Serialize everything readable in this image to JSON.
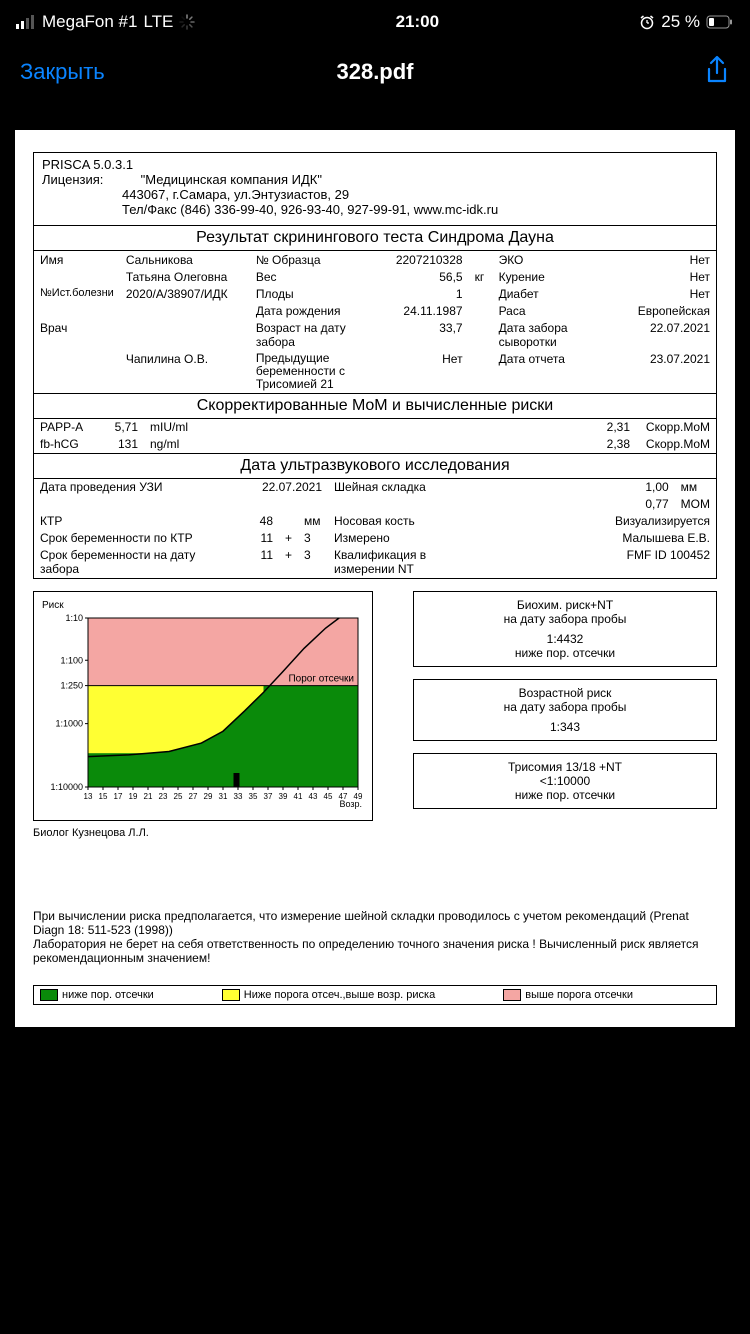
{
  "status": {
    "carrier": "MegaFon #1",
    "network": "LTE",
    "time": "21:00",
    "battery_pct": "25 %"
  },
  "nav": {
    "close": "Закрыть",
    "title": "328.pdf"
  },
  "doc": {
    "app": "PRISCA  5.0.3.1",
    "lic_label": "Лицензия:",
    "lic_name": "\"Медицинская компания ИДК\"",
    "lic_addr": "443067, г.Самара, ул.Энтузиастов, 29",
    "lic_tel": "Тел/Факс (846) 336-99-40, 926-93-40, 927-99-91, www.mc-idk.ru",
    "title1": "Результат скринингового теста Синдрома Дауна",
    "p": {
      "name_l": "Имя",
      "name1": "Сальникова",
      "name2": "Татьяна Олеговна",
      "hist_l": "№Ист.болезни",
      "hist": "2020/A/38907/ИДК",
      "doc_l": "Врач",
      "doc": "Чапилина О.В.",
      "sample_l": "№ Образца",
      "sample": "2207210328",
      "weight_l": "Вес",
      "weight": "56,5",
      "weight_u": "кг",
      "fetus_l": "Плоды",
      "fetus": "1",
      "dob_l": "Дата рождения",
      "dob": "24.11.1987",
      "age_l": "Возраст на дату забора",
      "age": "33,7",
      "prev_l": "Предыдущие беременности с Трисомией 21",
      "prev": "Нет",
      "eco_l": "ЭКО",
      "eco": "Нет",
      "smoke_l": "Курение",
      "smoke": "Нет",
      "diab_l": "Диабет",
      "diab": "Нет",
      "race_l": "Раса",
      "race": "Европейская",
      "sdate_l": "Дата забора сыворотки",
      "sdate": "22.07.2021",
      "rdate_l": "Дата отчета",
      "rdate": "23.07.2021"
    },
    "title2": "Скорректированные MoM и вычисленные риски",
    "mom": {
      "m1": "PAPP-A",
      "v1": "5,71",
      "u1": "mIU/ml",
      "c1": "2,31",
      "l1": "Скорр.MoM",
      "m2": "fb-hCG",
      "v2": "131",
      "u2": "ng/ml",
      "c2": "2,38",
      "l2": "Скорр.MoM"
    },
    "title3": "Дата ультразвукового исследования",
    "us": {
      "d_l": "Дата проведения УЗИ",
      "d": "22.07.2021",
      "nt_l": "Шейная складка",
      "nt": "1,00",
      "nt_u": "мм",
      "nt_mom": "0,77",
      "nt_moml": "MOM",
      "crl_l": "КТР",
      "crl": "48",
      "crl_u": "мм",
      "nb_l": "Носовая кость",
      "nb": "Визуализируется",
      "ga1_l": "Срок беременности по КТР",
      "ga1a": "11",
      "ga1p": "+",
      "ga1b": "3",
      "meas_l": "Измерено",
      "meas": "Малышева Е.В.",
      "ga2_l": "Срок беременности на дату забора",
      "ga2a": "11",
      "ga2p": "+",
      "ga2b": "3",
      "qual_l": "Квалификация в измерении NT",
      "qual": "FMF  ID 100452"
    },
    "chart": {
      "ylabel": "Риск",
      "xlabel": "Возр.",
      "cutoff_label": "Порог отсечки",
      "y_ticks": [
        "1:10",
        "1:100",
        "1:250",
        "1:1000",
        "1:10000"
      ],
      "x_ticks": [
        "13",
        "15",
        "17",
        "19",
        "21",
        "23",
        "25",
        "27",
        "29",
        "31",
        "33",
        "35",
        "37",
        "39",
        "41",
        "43",
        "45",
        "47",
        "49"
      ],
      "colors": {
        "high": "#f4a6a3",
        "mid": "#ffff33",
        "low": "#0a8a0a",
        "frame": "#000000",
        "bg": "#ffffff"
      },
      "cutoff_y": 0.4,
      "curve": [
        [
          0,
          0.82
        ],
        [
          0.15,
          0.81
        ],
        [
          0.3,
          0.79
        ],
        [
          0.42,
          0.74
        ],
        [
          0.5,
          0.67
        ],
        [
          0.58,
          0.55
        ],
        [
          0.65,
          0.44
        ],
        [
          0.72,
          0.32
        ],
        [
          0.8,
          0.18
        ],
        [
          0.88,
          0.06
        ],
        [
          0.93,
          0.0
        ]
      ],
      "marker_x": 0.55
    },
    "bio": "Биолог  Кузнецова Л.Л.",
    "risk": {
      "b1t": "Биохим. риск+NT",
      "b1s": "на дату забора пробы",
      "b1v": "1:4432",
      "b1n": "ниже пор. отсечки",
      "b2t": "Возрастной риск",
      "b2s": "на дату забора пробы",
      "b2v": "1:343",
      "b3t": "Трисомия 13/18 +NT",
      "b3v": "<1:10000",
      "b3n": "ниже пор. отсечки"
    },
    "foot1": "При вычислении риска предполагается, что измерение шейной складки проводилось с учетом рекомендаций (Prenat Diagn 18: 511-523 (1998))",
    "foot2": "Лаборатория не берет на себя ответственность по определению точного значения риска ! Вычисленный риск является рекомендационным значением!",
    "legend": {
      "l1": "ниже пор. отсечки",
      "l2": "Ниже порога отсеч.,выше возр. риска",
      "l3": "выше порога отсечки"
    }
  }
}
